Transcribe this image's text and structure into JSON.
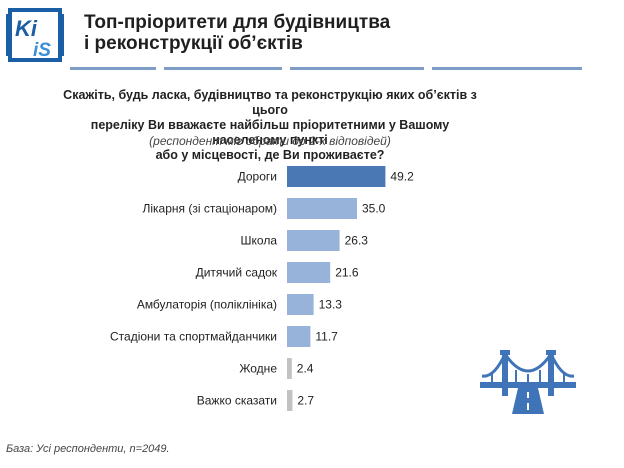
{
  "logo": {
    "letters": [
      "Ki",
      "IS"
    ],
    "colors": {
      "primary": "#1a5ea6",
      "accent": "#3b8fd6"
    }
  },
  "header": {
    "title_line1": "Топ-пріоритети для будівництва",
    "title_line2": "і реконструкції об’єктів"
  },
  "question": {
    "line1": "Скажіть, будь ласка, будівництво та реконструкцію яких об’єктів з цього",
    "line2": "переліку Ви вважаєте найбільш пріоритетними у Вашому населеному пункті",
    "line3": "або у місцевості, де Ви проживаєте?",
    "note": "(респондент міг обрати до 2-х відповідей)"
  },
  "chart_data": {
    "type": "bar",
    "orientation": "horizontal",
    "categories": [
      "Дороги",
      "Лікарня (зі стаціонаром)",
      "Школа",
      "Дитячий садок",
      "Амбулаторія (поліклініка)",
      "Стадіони та спортмайданчики",
      "Жодне",
      "Важко сказати"
    ],
    "values": [
      49.2,
      35.0,
      26.3,
      21.6,
      13.3,
      11.7,
      2.4,
      2.7
    ],
    "value_labels": [
      "49.2",
      "35.0",
      "26.3",
      "21.6",
      "13.3",
      "11.7",
      "2.4",
      "2.7"
    ],
    "xlim": [
      0,
      50
    ],
    "grid": false,
    "legend": "none",
    "colors": {
      "highlight": "#4a78b5",
      "regular": "#98b3da",
      "neutral": "#c2c2c2"
    },
    "color_keys": [
      "highlight",
      "regular",
      "regular",
      "regular",
      "regular",
      "regular",
      "neutral",
      "neutral"
    ]
  },
  "decor": {
    "icon": "bridge-icon",
    "color": "#3f75b8"
  },
  "footnote": "База: Усі респонденти, n=2049."
}
